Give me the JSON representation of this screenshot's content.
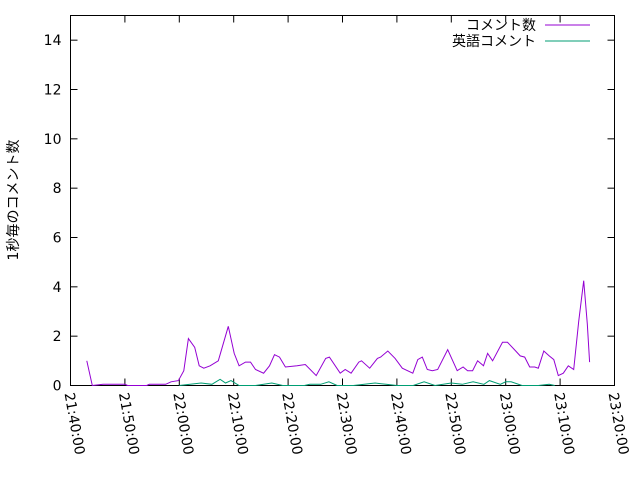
{
  "chart_data": {
    "type": "line",
    "title": "",
    "xlabel": "",
    "ylabel": "1秒毎のコメント数",
    "xlim": [
      "21:40:00",
      "23:20:00"
    ],
    "ylim": [
      0,
      15
    ],
    "xticks": [
      "21:40:00",
      "21:50:00",
      "22:00:00",
      "22:10:00",
      "22:20:00",
      "22:30:00",
      "22:40:00",
      "22:50:00",
      "23:00:00",
      "23:10:00",
      "23:20:00"
    ],
    "yticks": [
      "0",
      "2",
      "4",
      "6",
      "8",
      "10",
      "12",
      "14"
    ],
    "grid": false,
    "legend_position": "top-right",
    "series": [
      {
        "name": "コメント数",
        "color": "#9400d3",
        "points": [
          [
            "21:43:00",
            1.0
          ],
          [
            "21:44:00",
            0
          ],
          [
            "21:46:00",
            0.05
          ],
          [
            "21:47:00",
            0.05
          ],
          [
            "21:50:00",
            0.05
          ],
          [
            "21:50:30",
            0
          ],
          [
            "21:54:00",
            0
          ],
          [
            "21:54:30",
            0.05
          ],
          [
            "21:57:30",
            0.05
          ],
          [
            "21:58:30",
            0.15
          ],
          [
            "21:59:50",
            0.2
          ],
          [
            "22:00:50",
            0.6
          ],
          [
            "22:01:40",
            1.9
          ],
          [
            "22:02:50",
            1.55
          ],
          [
            "22:03:40",
            0.8
          ],
          [
            "22:04:30",
            0.7
          ],
          [
            "22:05:40",
            0.8
          ],
          [
            "22:07:10",
            1.0
          ],
          [
            "22:09:00",
            2.4
          ],
          [
            "22:10:05",
            1.3
          ],
          [
            "22:11:00",
            0.8
          ],
          [
            "22:12:10",
            0.95
          ],
          [
            "22:13:05",
            0.95
          ],
          [
            "22:14:00",
            0.65
          ],
          [
            "22:15:30",
            0.5
          ],
          [
            "22:16:35",
            0.8
          ],
          [
            "22:17:30",
            1.25
          ],
          [
            "22:18:25",
            1.15
          ],
          [
            "22:19:30",
            0.75
          ],
          [
            "22:21:40",
            0.8
          ],
          [
            "22:23:10",
            0.85
          ],
          [
            "22:25:10",
            0.4
          ],
          [
            "22:26:55",
            1.1
          ],
          [
            "22:27:35",
            1.15
          ],
          [
            "22:29:35",
            0.5
          ],
          [
            "22:30:30",
            0.65
          ],
          [
            "22:31:35",
            0.5
          ],
          [
            "22:33:00",
            0.95
          ],
          [
            "22:33:30",
            1.0
          ],
          [
            "22:35:00",
            0.7
          ],
          [
            "22:36:25",
            1.1
          ],
          [
            "22:37:00",
            1.15
          ],
          [
            "22:38:20",
            1.4
          ],
          [
            "22:39:40",
            1.1
          ],
          [
            "22:41:00",
            0.7
          ],
          [
            "22:42:55",
            0.5
          ],
          [
            "22:43:50",
            1.05
          ],
          [
            "22:44:40",
            1.15
          ],
          [
            "22:45:35",
            0.65
          ],
          [
            "22:46:30",
            0.6
          ],
          [
            "22:47:30",
            0.65
          ],
          [
            "22:49:20",
            1.45
          ],
          [
            "22:51:05",
            0.6
          ],
          [
            "22:52:10",
            0.75
          ],
          [
            "22:53:00",
            0.6
          ],
          [
            "22:53:55",
            0.6
          ],
          [
            "22:54:50",
            1.0
          ],
          [
            "22:55:55",
            0.8
          ],
          [
            "22:56:40",
            1.3
          ],
          [
            "22:57:35",
            1.0
          ],
          [
            "22:59:25",
            1.75
          ],
          [
            "23:00:20",
            1.75
          ],
          [
            "23:01:50",
            1.4
          ],
          [
            "23:02:40",
            1.2
          ],
          [
            "23:03:30",
            1.15
          ],
          [
            "23:04:25",
            0.75
          ],
          [
            "23:05:20",
            0.75
          ],
          [
            "23:06:00",
            0.7
          ],
          [
            "23:07:00",
            1.4
          ],
          [
            "23:08:00",
            1.2
          ],
          [
            "23:08:50",
            1.05
          ],
          [
            "23:09:40",
            0.4
          ],
          [
            "23:10:35",
            0.5
          ],
          [
            "23:11:30",
            0.8
          ],
          [
            "23:12:30",
            0.65
          ],
          [
            "23:13:25",
            2.6
          ],
          [
            "23:14:20",
            4.25
          ],
          [
            "23:15:00",
            2.5
          ],
          [
            "23:15:25",
            0.95
          ]
        ]
      },
      {
        "name": "英語コメント",
        "color": "#009e73",
        "points": [
          [
            "22:00:00",
            0
          ],
          [
            "22:02:00",
            0.05
          ],
          [
            "22:04:00",
            0.1
          ],
          [
            "22:06:00",
            0.05
          ],
          [
            "22:07:30",
            0.25
          ],
          [
            "22:08:30",
            0.1
          ],
          [
            "22:09:30",
            0.2
          ],
          [
            "22:11:00",
            0
          ],
          [
            "22:14:00",
            0
          ],
          [
            "22:17:00",
            0.1
          ],
          [
            "22:19:00",
            0
          ],
          [
            "22:23:00",
            0
          ],
          [
            "22:24:00",
            0.05
          ],
          [
            "22:26:00",
            0.05
          ],
          [
            "22:27:30",
            0.15
          ],
          [
            "22:29:00",
            0
          ],
          [
            "22:32:00",
            0
          ],
          [
            "22:34:00",
            0.05
          ],
          [
            "22:36:00",
            0.1
          ],
          [
            "22:38:00",
            0.05
          ],
          [
            "22:40:00",
            0
          ],
          [
            "22:43:00",
            0
          ],
          [
            "22:45:00",
            0.15
          ],
          [
            "22:47:00",
            0
          ],
          [
            "22:50:00",
            0.1
          ],
          [
            "22:52:00",
            0.05
          ],
          [
            "22:54:00",
            0.15
          ],
          [
            "22:56:00",
            0.05
          ],
          [
            "22:57:00",
            0.2
          ],
          [
            "22:59:00",
            0.05
          ],
          [
            "23:00:00",
            0.15
          ],
          [
            "23:01:00",
            0.15
          ],
          [
            "23:03:00",
            0
          ],
          [
            "23:06:00",
            0
          ],
          [
            "23:08:00",
            0.05
          ],
          [
            "23:09:00",
            0
          ]
        ]
      }
    ]
  }
}
